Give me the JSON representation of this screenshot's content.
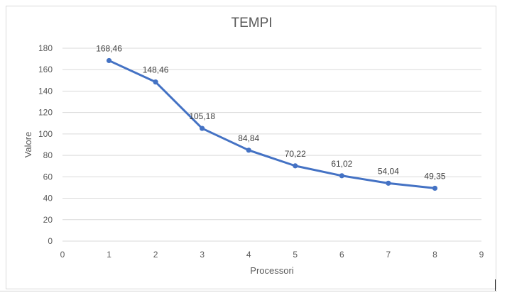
{
  "chart_data": {
    "type": "line",
    "title": "TEMPI",
    "xlabel": "Processori",
    "ylabel": "Valore",
    "xlim": [
      0,
      9
    ],
    "ylim": [
      0,
      180
    ],
    "x_ticks": [
      "0",
      "1",
      "2",
      "3",
      "4",
      "5",
      "6",
      "7",
      "8",
      "9"
    ],
    "y_ticks": [
      "0",
      "20",
      "40",
      "60",
      "80",
      "100",
      "120",
      "140",
      "160",
      "180"
    ],
    "grid": true,
    "legend": "none",
    "line_color": "#4472c4",
    "series": [
      {
        "x": [
          1,
          2,
          3,
          4,
          5,
          6,
          7,
          8
        ],
        "values": [
          168.46,
          148.46,
          105.18,
          84.84,
          70.22,
          61.02,
          54.04,
          49.35
        ],
        "labels": [
          "168,46",
          "148,46",
          "105,18",
          "84,84",
          "70,22",
          "61,02",
          "54,04",
          "49,35"
        ]
      }
    ]
  }
}
